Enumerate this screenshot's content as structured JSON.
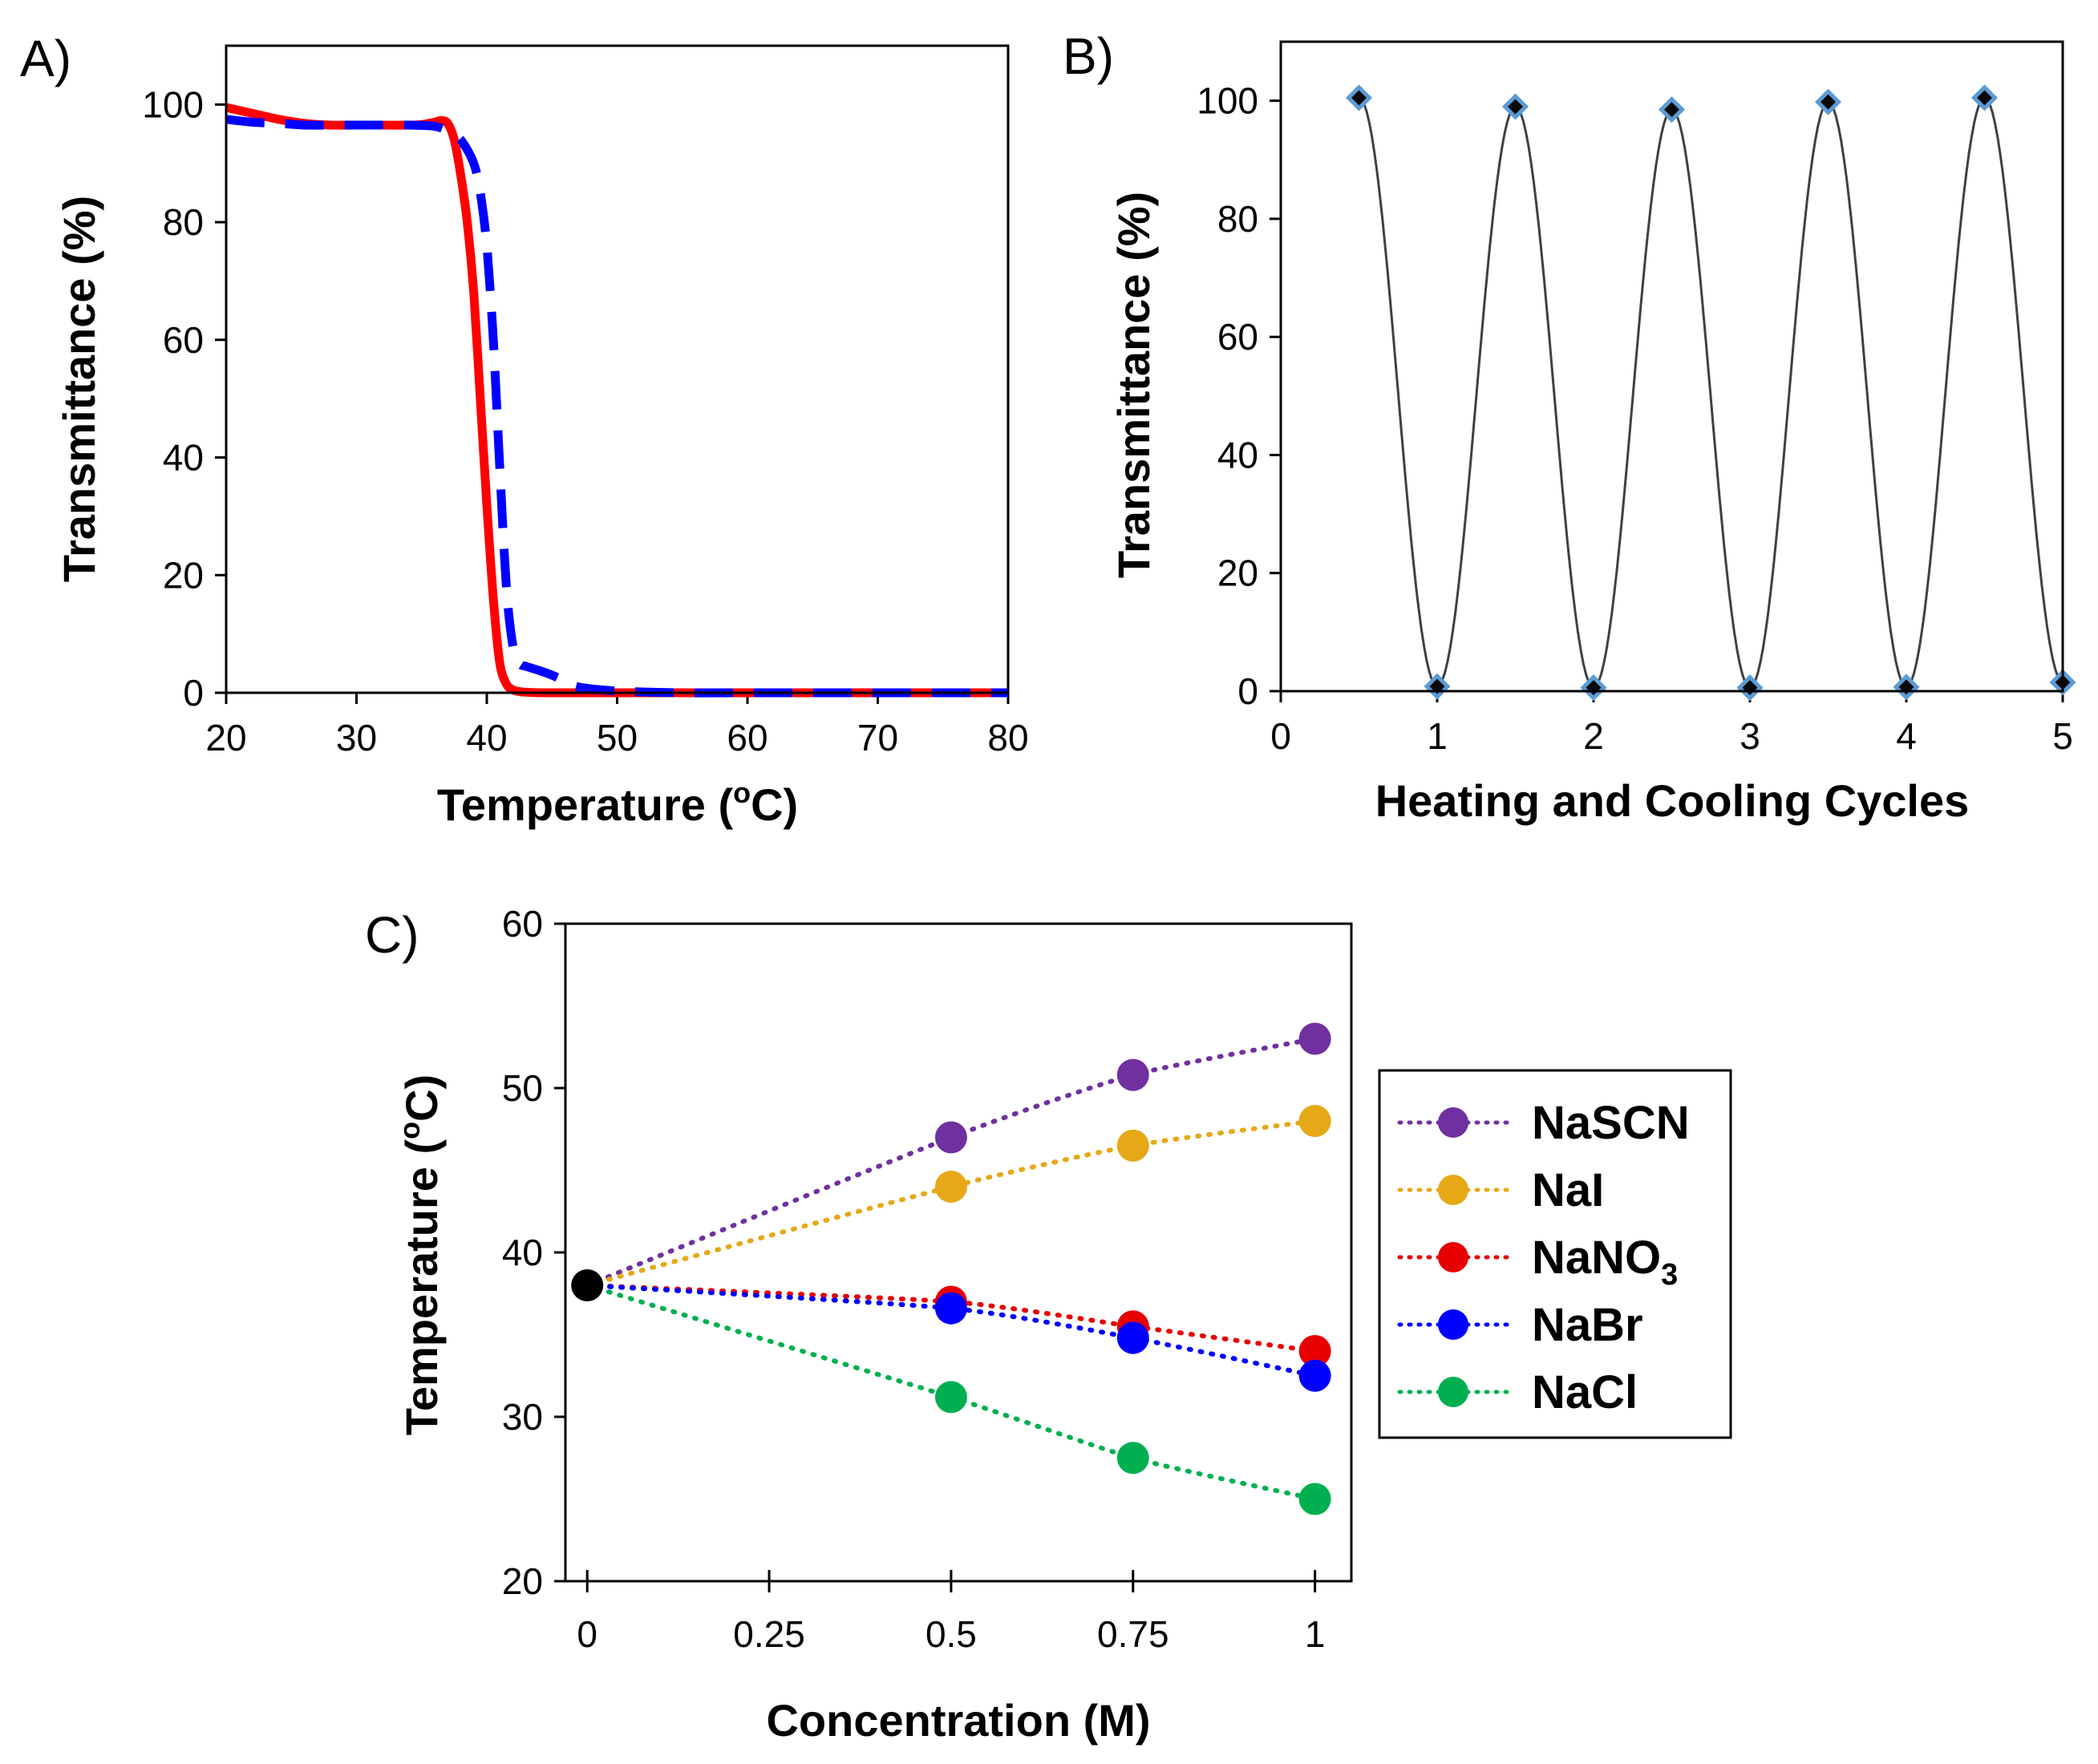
{
  "chart_data": [
    {
      "panel_label": "A)",
      "type": "line",
      "xlabel": "Temperature (oC)",
      "xlabel_main": "Temperature (",
      "xlabel_sup": "o",
      "xlabel_tail": "C)",
      "ylabel": "Transmittance (%)",
      "xlim": [
        20,
        80
      ],
      "ylim": [
        0,
        110
      ],
      "xticks": [
        20,
        30,
        40,
        50,
        60,
        70,
        80
      ],
      "yticks": [
        0,
        20,
        40,
        60,
        80,
        100
      ],
      "grid": false,
      "series": [
        {
          "color": "#ff0000",
          "style": "solid",
          "x": [
            20,
            22,
            24,
            26,
            28,
            30,
            32,
            34,
            35,
            36,
            36.5,
            37,
            37.5,
            38,
            38.5,
            39,
            39.5,
            40,
            40.5,
            41,
            41.5,
            42,
            42.5,
            43,
            44,
            46,
            50,
            55,
            60,
            65,
            70,
            75,
            80
          ],
          "y": [
            99.5,
            98.5,
            97.5,
            96.8,
            96.5,
            96.5,
            96.5,
            96.5,
            96.6,
            97,
            97.3,
            96.8,
            94,
            88,
            80,
            68,
            50,
            32,
            16,
            5,
            1.5,
            0.5,
            0.2,
            0.1,
            0,
            0,
            0,
            0,
            0,
            0,
            0,
            0,
            0
          ]
        },
        {
          "color": "#0000ff",
          "style": "dashed",
          "x": [
            20,
            22,
            24,
            26,
            28,
            30,
            32,
            34,
            36,
            37,
            38,
            39,
            39.5,
            40,
            40.5,
            41,
            41.5,
            42,
            42.5,
            43,
            44,
            45,
            46,
            47,
            50,
            55,
            60,
            65,
            70,
            75,
            80
          ],
          "y": [
            97.5,
            97,
            96.8,
            96.5,
            96.5,
            96.5,
            96.5,
            96.5,
            96.3,
            95.5,
            94,
            90,
            85,
            76,
            60,
            38,
            18,
            8,
            5,
            4.5,
            3.8,
            3,
            2,
            1,
            0.3,
            0,
            0,
            0,
            0,
            0,
            0
          ]
        }
      ]
    },
    {
      "panel_label": "B)",
      "type": "line",
      "xlabel": "Heating and Cooling Cycles",
      "ylabel": "Transmittance (%)",
      "xlim": [
        0,
        5
      ],
      "ylim": [
        0,
        110
      ],
      "xticks": [
        0,
        1,
        2,
        3,
        4,
        5
      ],
      "yticks": [
        0,
        20,
        40,
        60,
        80,
        100
      ],
      "grid": false,
      "series": [
        {
          "color": "#404040",
          "marker": "diamond",
          "marker_color": "#5b9bd5",
          "x": [
            0.5,
            1,
            1.5,
            2,
            2.5,
            3,
            3.5,
            4,
            4.5,
            5
          ],
          "y": [
            100.5,
            0.8,
            99,
            0.6,
            98.5,
            0.6,
            99.8,
            0.7,
            100.5,
            1.5
          ]
        }
      ]
    },
    {
      "panel_label": "C)",
      "type": "line",
      "xlabel": "Concentration (M)",
      "ylabel": "Temperature (oC)",
      "ylabel_main": "Temperature (",
      "ylabel_sup": "o",
      "ylabel_tail": "C)",
      "xlim": [
        -0.03,
        1.05
      ],
      "ylim": [
        20,
        60
      ],
      "xticks": [
        0,
        0.25,
        0.5,
        0.75,
        1
      ],
      "xticklabels": [
        "0",
        "0.25",
        "0.5",
        "0.75",
        "1"
      ],
      "yticks": [
        20,
        30,
        40,
        50,
        60
      ],
      "grid": false,
      "legend_position": "right",
      "origin_point": {
        "x": 0,
        "y": 38,
        "color": "#000000"
      },
      "series": [
        {
          "name": "NaSCN",
          "color": "#7030a0",
          "style": "dotted",
          "x": [
            0,
            0.5,
            0.75,
            1
          ],
          "y": [
            38,
            47,
            50.8,
            53
          ]
        },
        {
          "name": "NaI",
          "color": "#e6a817",
          "style": "dotted",
          "x": [
            0,
            0.5,
            0.75,
            1
          ],
          "y": [
            38,
            44,
            46.5,
            48
          ]
        },
        {
          "name": "NaNO3",
          "name_main": "NaNO",
          "name_sub": "3",
          "color": "#e60000",
          "style": "dotted",
          "x": [
            0,
            0.5,
            0.75,
            1
          ],
          "y": [
            38,
            37,
            35.5,
            34
          ]
        },
        {
          "name": "NaBr",
          "color": "#0000ff",
          "style": "dotted",
          "x": [
            0,
            0.5,
            0.75,
            1
          ],
          "y": [
            38,
            36.6,
            34.8,
            32.5
          ]
        },
        {
          "name": "NaCl",
          "color": "#00b050",
          "style": "dotted",
          "x": [
            0,
            0.5,
            0.75,
            1
          ],
          "y": [
            38,
            31.2,
            27.5,
            25
          ]
        }
      ]
    }
  ]
}
